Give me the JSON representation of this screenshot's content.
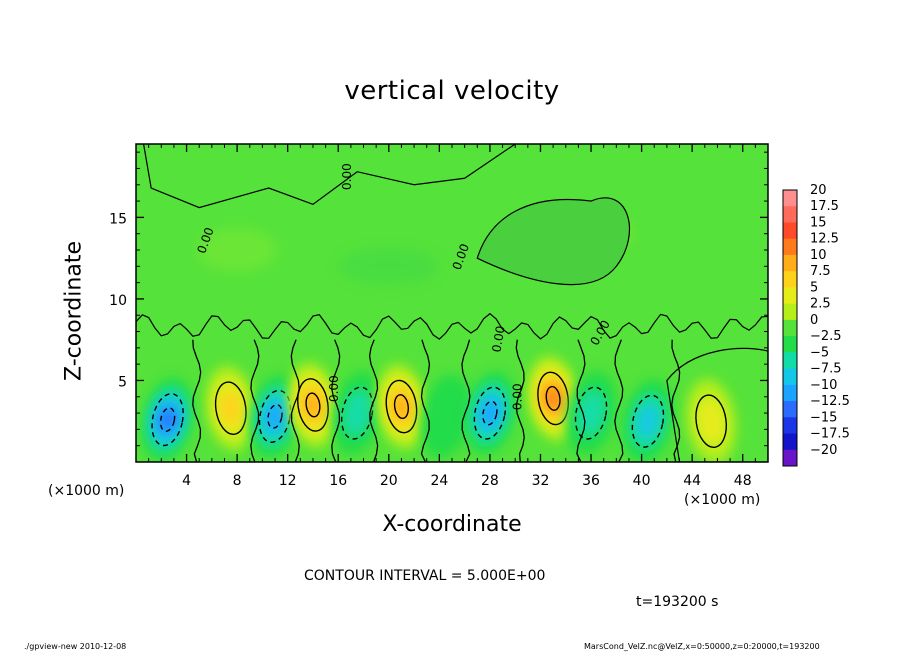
{
  "chart_data": {
    "type": "heatmap",
    "title": "vertical velocity",
    "xlabel": "X-coordinate",
    "ylabel": "Z-coordinate",
    "x_unit_label": "(×1000 m)",
    "x_range": [
      0,
      50000
    ],
    "z_range": [
      0,
      20000
    ],
    "xlim": [
      0,
      50
    ],
    "ylim": [
      0,
      19.5
    ],
    "x_ticks": [
      4,
      8,
      12,
      16,
      20,
      24,
      28,
      32,
      36,
      40,
      44,
      48
    ],
    "y_ticks": [
      5,
      10,
      15
    ],
    "contour_interval_text": "CONTOUR INTERVAL = 5.000E+00",
    "contour_labels": [
      "0.00",
      "0.00",
      "0.00",
      "0.00",
      "0.00",
      "0.00",
      "0.00"
    ],
    "time_text": "t=193200 s",
    "colorbar": {
      "levels": [
        "20",
        "17.5",
        "15",
        "12.5",
        "10",
        "7.5",
        "5",
        "2.5",
        "0",
        "−2.5",
        "−5",
        "−7.5",
        "−10",
        "−12.5",
        "−15",
        "−17.5",
        "−20"
      ],
      "colors": [
        "#ff8f8f",
        "#ff6a5a",
        "#ff4a2a",
        "#ff7a1a",
        "#ffae1a",
        "#ffd21a",
        "#e6ec1a",
        "#b6ee1a",
        "#55e23a",
        "#22dc4a",
        "#12dca8",
        "#12c8e6",
        "#1aa4ff",
        "#2a6cff",
        "#1a36e6",
        "#1414c8",
        "#6a14c8"
      ]
    },
    "cells": [
      {
        "x": 2.5,
        "z": 2.6,
        "w": -14
      },
      {
        "x": 7.5,
        "z": 3.3,
        "w": 8
      },
      {
        "x": 11.0,
        "z": 2.8,
        "w": -10
      },
      {
        "x": 14.0,
        "z": 3.5,
        "w": 11
      },
      {
        "x": 17.5,
        "z": 3.0,
        "w": -6
      },
      {
        "x": 21.0,
        "z": 3.4,
        "w": 12
      },
      {
        "x": 24.5,
        "z": 2.8,
        "w": -4
      },
      {
        "x": 28.0,
        "z": 3.0,
        "w": -11
      },
      {
        "x": 33.0,
        "z": 3.9,
        "w": 14
      },
      {
        "x": 36.0,
        "z": 3.0,
        "w": -5
      },
      {
        "x": 40.5,
        "z": 2.5,
        "w": -9
      },
      {
        "x": 45.5,
        "z": 2.5,
        "w": 7
      }
    ]
  },
  "footer": {
    "left": "./gpview-new  2010-12-08",
    "right": "MarsCond_VelZ.nc@VelZ,x=0:50000,z=0:20000,t=193200"
  }
}
